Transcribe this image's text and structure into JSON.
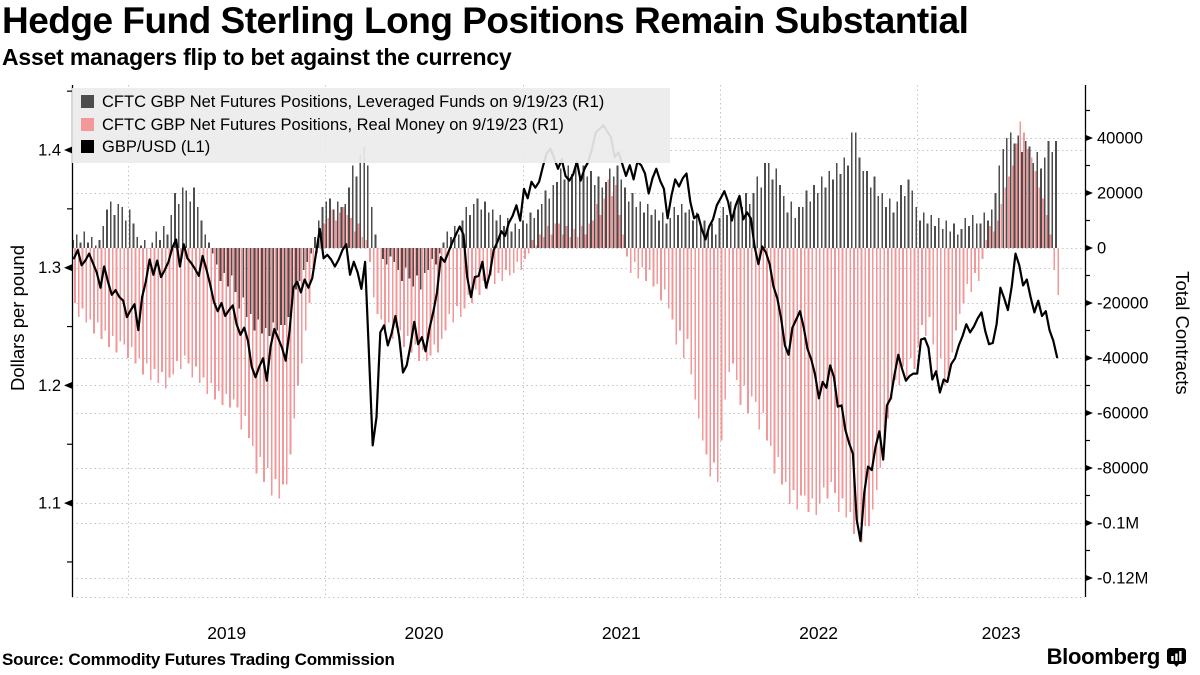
{
  "title": "Hedge Fund Sterling Long Positions Remain Substantial",
  "subtitle": "Asset managers flip to bet against the currency",
  "source": "Source: Commodity Futures Trading Commission",
  "brand": "Bloomberg",
  "colors": {
    "leveraged": "#4d4d4d",
    "real_money": "#f3989a",
    "line": "#000000",
    "grid": "#c3c3c3",
    "axis": "#000000",
    "legend_bg": "#ebebeb"
  },
  "legend": {
    "items": [
      {
        "key": "leveraged",
        "label": "CFTC GBP Net Futures Positions, Leveraged Funds on 9/19/23 (R1)"
      },
      {
        "key": "real_money",
        "label": "CFTC GBP Net Futures Positions, Real Money on 9/19/23 (R1)"
      },
      {
        "key": "line",
        "label": "GBP/USD (L1)"
      }
    ]
  },
  "left_axis": {
    "title": "Dollars per pound",
    "ticks": [
      {
        "value": 1.4,
        "label": "1.4"
      },
      {
        "value": 1.3,
        "label": "1.3"
      },
      {
        "value": 1.2,
        "label": "1.2"
      },
      {
        "value": 1.1,
        "label": "1.1"
      }
    ],
    "minor_step": 0.05,
    "range_top": 1.455,
    "range_bottom": 1.02
  },
  "right_axis": {
    "title": "Total Contracts",
    "ticks": [
      {
        "value_k": 40,
        "label": "40000"
      },
      {
        "value_k": 20,
        "label": "20000"
      },
      {
        "value_k": 0,
        "label": "0"
      },
      {
        "value_k": -20,
        "label": "-20000"
      },
      {
        "value_k": -40,
        "label": "-40000"
      },
      {
        "value_k": -60,
        "label": "-60000"
      },
      {
        "value_k": -80,
        "label": "-80000"
      },
      {
        "value_k": -100,
        "label": "-0.1M"
      },
      {
        "value_k": -120,
        "label": "-0.12M"
      }
    ],
    "minor_step_k": 10
  },
  "x_axis": {
    "year_labels": [
      "2019",
      "2020",
      "2021",
      "2022",
      "2023"
    ],
    "year_values": [
      2019,
      2020,
      2021,
      2022,
      2023
    ]
  },
  "chart_data": {
    "type": "mixed",
    "x": {
      "start": "2018-09-18",
      "end": "2023-09-19",
      "interval": "weekly",
      "points": 261
    },
    "left_ylim": [
      1.02,
      1.455
    ],
    "right_ylim_contracts": [
      -126000,
      59000
    ],
    "grid": "dashed, both axes' major levels plus year verticals",
    "legend_position": "top-left overlay",
    "series": [
      {
        "name": "CFTC GBP Net Futures Positions, Leveraged Funds on 9/19/23 (R1)",
        "type": "bar",
        "axis": "right",
        "unit": "thousands of contracts",
        "values_k": [
          3,
          5,
          2,
          6,
          2,
          4,
          1,
          3,
          8,
          14,
          17,
          12,
          16,
          15,
          10,
          14,
          9,
          4,
          1,
          3,
          0,
          2,
          6,
          3,
          8,
          5,
          12,
          20,
          16,
          22,
          21,
          17,
          22,
          15,
          10,
          5,
          2,
          -2,
          -6,
          -12,
          -9,
          -14,
          -10,
          -16,
          -22,
          -18,
          -25,
          -24,
          -30,
          -26,
          -31,
          -29,
          -32,
          -27,
          -30,
          -28,
          -28,
          -25,
          -20,
          -15,
          -12,
          -8,
          -5,
          -2,
          4,
          10,
          15,
          17,
          18,
          14,
          17,
          15,
          16,
          22,
          30,
          26,
          34,
          37,
          30,
          15,
          5,
          0,
          -4,
          -6,
          -3,
          -5,
          -8,
          -12,
          -7,
          -11,
          -14,
          -10,
          -15,
          -9,
          -8,
          -4,
          -6,
          -2,
          2,
          6,
          4,
          8,
          5,
          10,
          15,
          12,
          16,
          18,
          14,
          17,
          13,
          14,
          10,
          12,
          8,
          11,
          6,
          9,
          7,
          10,
          9,
          13,
          11,
          14,
          16,
          21,
          18,
          23,
          24,
          29,
          25,
          30,
          27,
          31,
          27,
          30,
          26,
          28,
          23,
          26,
          22,
          24,
          29,
          26,
          30,
          25,
          22,
          17,
          20,
          15,
          17,
          13,
          16,
          12,
          14,
          10,
          13,
          9,
          11,
          15,
          12,
          16,
          13,
          14,
          10,
          13,
          8,
          10,
          6,
          9,
          5,
          11,
          15,
          12,
          17,
          14,
          18,
          15,
          20,
          16,
          20,
          26,
          22,
          31,
          31,
          25,
          29,
          23,
          19,
          13,
          17,
          11,
          15,
          15,
          21,
          17,
          23,
          20,
          26,
          22,
          28,
          25,
          31,
          27,
          33,
          30,
          42,
          42,
          33,
          28,
          28,
          22,
          26,
          19,
          20,
          15,
          18,
          13,
          17,
          23,
          19,
          25,
          21,
          15,
          10,
          13,
          9,
          12,
          8,
          11,
          7,
          10,
          6,
          9,
          5,
          7,
          11,
          8,
          12,
          9,
          9,
          13,
          10,
          14,
          20,
          30,
          36,
          40,
          42,
          38,
          41,
          35,
          39,
          37,
          31,
          35,
          29,
          33,
          39,
          35,
          39
        ]
      },
      {
        "name": "CFTC GBP Net Futures Positions, Real Money on 9/19/23 (R1)",
        "type": "bar",
        "axis": "right",
        "unit": "thousands of contracts",
        "values_k": [
          -20,
          -25,
          -22,
          -27,
          -26,
          -31,
          -27,
          -33,
          -30,
          -36,
          -32,
          -38,
          -34,
          -35,
          -40,
          -36,
          -42,
          -40,
          -46,
          -42,
          -48,
          -44,
          -49,
          -45,
          -51,
          -47,
          -46,
          -41,
          -44,
          -39,
          -42,
          -47,
          -43,
          -49,
          -47,
          -53,
          -49,
          -55,
          -52,
          -57,
          -53,
          -58,
          -55,
          -58,
          -66,
          -61,
          -69,
          -72,
          -82,
          -76,
          -85,
          -80,
          -90,
          -84,
          -91,
          -86,
          -86,
          -75,
          -62,
          -50,
          -42,
          -30,
          -20,
          -10,
          -2,
          5,
          9,
          11,
          14,
          10,
          13,
          15,
          12,
          11,
          6,
          9,
          4,
          3,
          -5,
          -18,
          -24,
          -26,
          -31,
          -27,
          -33,
          -29,
          -30,
          -36,
          -32,
          -38,
          -35,
          -41,
          -37,
          -41,
          -39,
          -35,
          -38,
          -33,
          -30,
          -24,
          -27,
          -21,
          -25,
          -22,
          -17,
          -20,
          -15,
          -17,
          -12,
          -15,
          -10,
          -13,
          -9,
          -12,
          -8,
          -10,
          -9,
          -5,
          -8,
          -4,
          -2,
          3,
          1,
          5,
          4,
          8,
          5,
          9,
          9,
          5,
          8,
          4,
          7,
          4,
          8,
          5,
          9,
          10,
          16,
          12,
          18,
          25,
          19,
          23,
          12,
          5,
          -3,
          -9,
          -5,
          -11,
          -7,
          -12,
          -8,
          -14,
          -13,
          -19,
          -15,
          -22,
          -26,
          -35,
          -30,
          -40,
          -33,
          -46,
          -55,
          -62,
          -70,
          -75,
          -83,
          -78,
          -85,
          -70,
          -55,
          -45,
          -42,
          -48,
          -57,
          -50,
          -60,
          -54,
          -56,
          -66,
          -60,
          -70,
          -72,
          -82,
          -76,
          -86,
          -85,
          -93,
          -88,
          -95,
          -90,
          -90,
          -96,
          -91,
          -97,
          -93,
          -87,
          -91,
          -85,
          -89,
          -96,
          -91,
          -98,
          -96,
          -104,
          -99,
          -107,
          -101,
          -101,
          -95,
          -88,
          -80,
          -72,
          -62,
          -55,
          -48,
          -50,
          -43,
          -47,
          -40,
          -44,
          -36,
          -28,
          -32,
          -25,
          -35,
          -45,
          -40,
          -50,
          -46,
          -38,
          -30,
          -24,
          -20,
          -13,
          -16,
          -9,
          -12,
          -4,
          3,
          8,
          6,
          10,
          16,
          22,
          26,
          30,
          38,
          46,
          42,
          36,
          33,
          28,
          22,
          18,
          12,
          5,
          -8,
          -17
        ]
      },
      {
        "name": "GBP/USD (L1)",
        "type": "line",
        "axis": "left",
        "unit": "dollars per pound",
        "values": [
          1.308,
          1.315,
          1.302,
          1.306,
          1.312,
          1.304,
          1.296,
          1.283,
          1.301,
          1.288,
          1.277,
          1.281,
          1.275,
          1.272,
          1.258,
          1.264,
          1.269,
          1.247,
          1.275,
          1.288,
          1.307,
          1.294,
          1.306,
          1.292,
          1.298,
          1.305,
          1.317,
          1.324,
          1.301,
          1.32,
          1.308,
          1.304,
          1.299,
          1.293,
          1.31,
          1.299,
          1.286,
          1.271,
          1.263,
          1.27,
          1.259,
          1.264,
          1.268,
          1.252,
          1.243,
          1.249,
          1.238,
          1.216,
          1.207,
          1.216,
          1.223,
          1.204,
          1.233,
          1.248,
          1.24,
          1.232,
          1.221,
          1.246,
          1.283,
          1.288,
          1.279,
          1.29,
          1.283,
          1.291,
          1.312,
          1.333,
          1.308,
          1.311,
          1.307,
          1.301,
          1.307,
          1.315,
          1.32,
          1.294,
          1.305,
          1.296,
          1.282,
          1.305,
          1.228,
          1.149,
          1.173,
          1.245,
          1.251,
          1.234,
          1.244,
          1.259,
          1.241,
          1.211,
          1.217,
          1.234,
          1.254,
          1.235,
          1.241,
          1.229,
          1.248,
          1.262,
          1.279,
          1.309,
          1.305,
          1.313,
          1.321,
          1.328,
          1.335,
          1.328,
          1.292,
          1.275,
          1.292,
          1.293,
          1.305,
          1.283,
          1.295,
          1.315,
          1.322,
          1.331,
          1.327,
          1.338,
          1.344,
          1.353,
          1.34,
          1.367,
          1.359,
          1.373,
          1.368,
          1.373,
          1.386,
          1.397,
          1.401,
          1.393,
          1.384,
          1.392,
          1.378,
          1.374,
          1.379,
          1.39,
          1.374,
          1.384,
          1.39,
          1.401,
          1.415,
          1.418,
          1.421,
          1.416,
          1.411,
          1.394,
          1.398,
          1.388,
          1.378,
          1.387,
          1.375,
          1.39,
          1.387,
          1.38,
          1.363,
          1.376,
          1.384,
          1.374,
          1.367,
          1.342,
          1.361,
          1.375,
          1.369,
          1.376,
          1.38,
          1.356,
          1.342,
          1.345,
          1.333,
          1.324,
          1.335,
          1.341,
          1.353,
          1.359,
          1.365,
          1.356,
          1.34,
          1.353,
          1.361,
          1.341,
          1.347,
          1.342,
          1.318,
          1.303,
          1.318,
          1.313,
          1.303,
          1.284,
          1.274,
          1.257,
          1.234,
          1.226,
          1.249,
          1.256,
          1.263,
          1.249,
          1.231,
          1.222,
          1.209,
          1.189,
          1.203,
          1.198,
          1.217,
          1.207,
          1.182,
          1.183,
          1.162,
          1.151,
          1.142,
          1.086,
          1.068,
          1.109,
          1.131,
          1.128,
          1.148,
          1.161,
          1.137,
          1.183,
          1.189,
          1.209,
          1.226,
          1.214,
          1.204,
          1.208,
          1.21,
          1.21,
          1.239,
          1.24,
          1.232,
          1.205,
          1.212,
          1.194,
          1.205,
          1.203,
          1.218,
          1.223,
          1.234,
          1.242,
          1.252,
          1.245,
          1.25,
          1.257,
          1.262,
          1.246,
          1.235,
          1.236,
          1.252,
          1.283,
          1.274,
          1.264,
          1.284,
          1.312,
          1.302,
          1.285,
          1.29,
          1.275,
          1.262,
          1.272,
          1.259,
          1.263,
          1.247,
          1.238,
          1.224
        ]
      }
    ]
  }
}
